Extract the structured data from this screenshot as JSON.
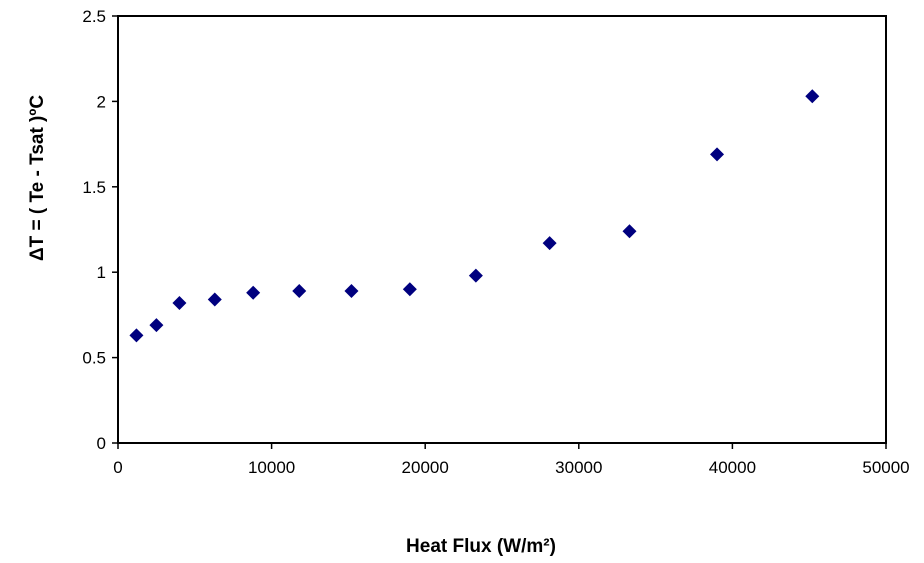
{
  "chart_data": {
    "type": "scatter",
    "title": "",
    "xlabel": "Heat Flux (W/m²)",
    "ylabel": "ΔT = ( Te - Tsat )ºC",
    "xlim": [
      0,
      50000
    ],
    "ylim": [
      0,
      2.5
    ],
    "x_ticks": [
      "0",
      "10000",
      "20000",
      "30000",
      "40000",
      "50000"
    ],
    "y_ticks": [
      "0",
      "0.5",
      "1",
      "1.5",
      "2",
      "2.5"
    ],
    "grid": false,
    "legend": "none",
    "marker_color": "#00007f",
    "series": [
      {
        "marker": "diamond",
        "points": [
          {
            "x": 1200,
            "y": 0.63
          },
          {
            "x": 2500,
            "y": 0.69
          },
          {
            "x": 4000,
            "y": 0.82
          },
          {
            "x": 6300,
            "y": 0.84
          },
          {
            "x": 8800,
            "y": 0.88
          },
          {
            "x": 11800,
            "y": 0.89
          },
          {
            "x": 15200,
            "y": 0.89
          },
          {
            "x": 19000,
            "y": 0.9
          },
          {
            "x": 23300,
            "y": 0.98
          },
          {
            "x": 28100,
            "y": 1.17
          },
          {
            "x": 33300,
            "y": 1.24
          },
          {
            "x": 39000,
            "y": 1.69
          },
          {
            "x": 45200,
            "y": 2.03
          }
        ]
      }
    ]
  }
}
